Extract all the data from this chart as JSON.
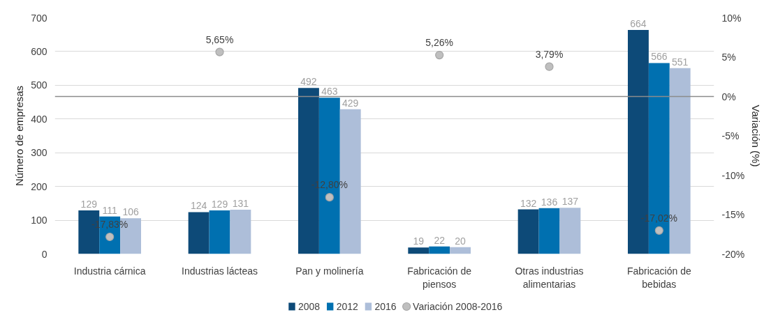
{
  "chart_data": {
    "type": "bar",
    "ylabel": "Número de empresas",
    "y2label": "Variación (%)",
    "categories": [
      "Industria cárnica",
      "Industrias lácteas",
      "Pan y molinería",
      "Fabricación de piensos",
      "Otras industrias alimentarias",
      "Fabricación de bebidas"
    ],
    "series": [
      {
        "name": "2008",
        "color": "#0d4a78",
        "values": [
          129,
          124,
          492,
          19,
          132,
          664
        ],
        "value_labels": [
          "129",
          "124",
          "492",
          "19",
          "132",
          "664"
        ]
      },
      {
        "name": "2012",
        "color": "#0070b0",
        "values": [
          111,
          129,
          463,
          22,
          136,
          566
        ],
        "value_labels": [
          "111",
          "129",
          "463",
          "22",
          "136",
          "566"
        ]
      },
      {
        "name": "2016",
        "color": "#adbed9",
        "values": [
          106,
          131,
          429,
          20,
          137,
          551
        ],
        "value_labels": [
          "106",
          "131",
          "429",
          "20",
          "137",
          "551"
        ]
      },
      {
        "name": "Variación 2008-2016",
        "type": "scatter",
        "axis": "y2",
        "marker": "circle",
        "color": "#bfbfbf",
        "values": [
          -17.83,
          5.65,
          -12.8,
          5.26,
          3.79,
          -17.02
        ],
        "value_labels": [
          "-17,83%",
          "5,65%",
          "-12,80%",
          "5,26%",
          "3,79%",
          "-17,02%"
        ]
      }
    ],
    "ylim": [
      0,
      700
    ],
    "yticks": [
      0,
      100,
      200,
      300,
      400,
      500,
      600,
      700
    ],
    "y2lim": [
      -20,
      10
    ],
    "y2ticks": [
      {
        "value": -20,
        "label": "-20%"
      },
      {
        "value": -15,
        "label": "-15%"
      },
      {
        "value": -10,
        "label": "-10%"
      },
      {
        "value": -5,
        "label": "-5%"
      },
      {
        "value": 0,
        "label": "0%"
      },
      {
        "value": 5,
        "label": "5%"
      },
      {
        "value": 10,
        "label": "10%"
      }
    ],
    "ref_lines": [
      {
        "axis": "y2",
        "value": 0,
        "color": "#8c8c8c"
      }
    ],
    "grid": "y",
    "legend": "bottom"
  }
}
